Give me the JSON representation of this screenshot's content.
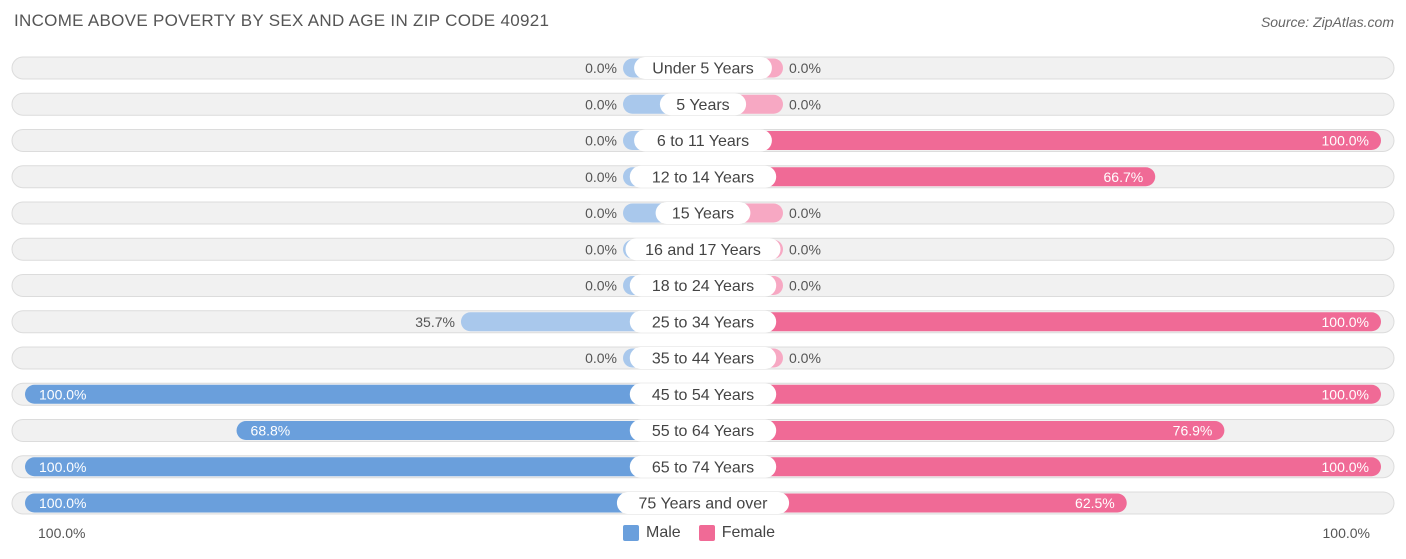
{
  "header": {
    "title": "INCOME ABOVE POVERTY BY SEX AND AGE IN ZIP CODE 40921",
    "source": "Source: ZipAtlas.com"
  },
  "axis": {
    "left_label": "100.0%",
    "right_label": "100.0%"
  },
  "legend": {
    "male_label": "Male",
    "female_label": "Female"
  },
  "colors": {
    "male_strong": "#6a9fdc",
    "male_light": "#a9c8ec",
    "female_strong": "#f06a96",
    "female_light": "#f7a8c3",
    "row_bg": "#f1f1f1",
    "row_border": "#dcdcdc"
  },
  "chart_data": {
    "type": "bar",
    "orientation": "horizontal-diverging",
    "title": "INCOME ABOVE POVERTY BY SEX AND AGE IN ZIP CODE 40921",
    "xlim": [
      -100,
      100
    ],
    "categories": [
      "Under 5 Years",
      "5 Years",
      "6 to 11 Years",
      "12 to 14 Years",
      "15 Years",
      "16 and 17 Years",
      "18 to 24 Years",
      "25 to 34 Years",
      "35 to 44 Years",
      "45 to 54 Years",
      "55 to 64 Years",
      "65 to 74 Years",
      "75 Years and over"
    ],
    "series": [
      {
        "name": "Male",
        "values": [
          0.0,
          0.0,
          0.0,
          0.0,
          0.0,
          0.0,
          0.0,
          35.7,
          0.0,
          100.0,
          68.8,
          100.0,
          100.0
        ],
        "labels": [
          "0.0%",
          "0.0%",
          "0.0%",
          "0.0%",
          "0.0%",
          "0.0%",
          "0.0%",
          "35.7%",
          "0.0%",
          "100.0%",
          "68.8%",
          "100.0%",
          "100.0%"
        ]
      },
      {
        "name": "Female",
        "values": [
          0.0,
          0.0,
          100.0,
          66.7,
          0.0,
          0.0,
          0.0,
          100.0,
          0.0,
          100.0,
          76.9,
          100.0,
          62.5
        ],
        "labels": [
          "0.0%",
          "0.0%",
          "100.0%",
          "66.7%",
          "0.0%",
          "0.0%",
          "0.0%",
          "100.0%",
          "0.0%",
          "100.0%",
          "76.9%",
          "100.0%",
          "62.5%"
        ]
      }
    ],
    "legend_position": "bottom-center"
  }
}
